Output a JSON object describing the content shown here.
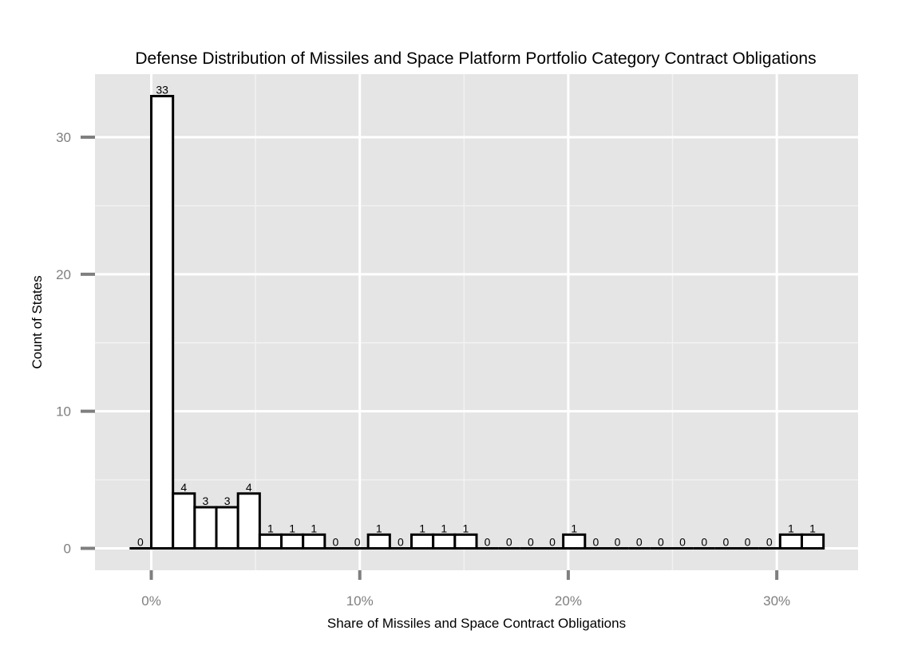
{
  "chart_data": {
    "type": "bar",
    "title": "Defense Distribution of Missiles and Space Platform Portfolio Category Contract Obligations",
    "xlabel": "Share of Missiles and Space Contract Obligations",
    "ylabel": "Count of States",
    "x_ticks": [
      {
        "value": 0,
        "label": "0%"
      },
      {
        "value": 10,
        "label": "10%"
      },
      {
        "value": 20,
        "label": "20%"
      },
      {
        "value": 30,
        "label": "30%"
      }
    ],
    "y_ticks": [
      {
        "value": 0,
        "label": "0"
      },
      {
        "value": 10,
        "label": "10"
      },
      {
        "value": 20,
        "label": "20"
      },
      {
        "value": 30,
        "label": "30"
      }
    ],
    "xlim": [
      -2.7,
      33.9
    ],
    "ylim": [
      -1.6,
      34.6
    ],
    "bin_width": 1.04,
    "bin_starts": [
      -1.04,
      0,
      1.04,
      2.08,
      3.12,
      4.16,
      5.2,
      6.24,
      7.28,
      8.32,
      9.36,
      10.4,
      11.44,
      12.48,
      13.52,
      14.56,
      15.6,
      16.64,
      17.68,
      18.72,
      19.76,
      20.8,
      21.84,
      22.88,
      23.92,
      24.96,
      26.0,
      27.04,
      28.08,
      29.12,
      30.16,
      31.2
    ],
    "values": [
      0,
      33,
      4,
      3,
      3,
      4,
      1,
      1,
      1,
      0,
      0,
      1,
      0,
      1,
      1,
      1,
      0,
      0,
      0,
      0,
      1,
      0,
      0,
      0,
      0,
      0,
      0,
      0,
      0,
      0,
      1,
      1
    ],
    "grid": true,
    "colors": {
      "panel_background": "#e5e5e5",
      "grid_major": "#ffffff",
      "grid_minor": "#f2f2f2",
      "bar_fill": "#ffffff",
      "bar_outline": "#000000",
      "tick_color": "#7f7f7f"
    }
  }
}
